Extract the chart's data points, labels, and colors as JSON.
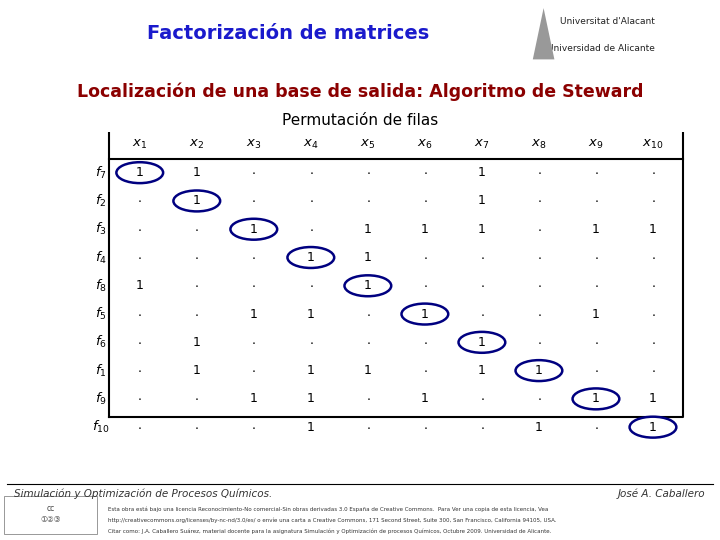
{
  "title": "Factorización de matrices",
  "subtitle": "Localización de una base de salida: Algoritmo de Steward",
  "sub2": "Permutación de filas",
  "row_labels": [
    "$f_7$",
    "$f_2$",
    "$f_3$",
    "$f_4$",
    "$f_8$",
    "$f_5$",
    "$f_6$",
    "$f_1$",
    "$f_9$",
    "$f_{10}$"
  ],
  "col_labels": [
    "$x_1$",
    "$x_2$",
    "$x_3$",
    "$x_4$",
    "$x_5$",
    "$x_6$",
    "$x_7$",
    "$x_8$",
    "$x_9$",
    "$x_{10}$"
  ],
  "matrix": [
    [
      1,
      1,
      0,
      0,
      0,
      0,
      1,
      0,
      0,
      0
    ],
    [
      0,
      1,
      0,
      0,
      0,
      0,
      1,
      0,
      0,
      0
    ],
    [
      0,
      0,
      1,
      0,
      1,
      1,
      1,
      0,
      1,
      1
    ],
    [
      0,
      0,
      0,
      1,
      1,
      0,
      0,
      0,
      0,
      0
    ],
    [
      1,
      0,
      0,
      0,
      1,
      0,
      0,
      0,
      0,
      0
    ],
    [
      0,
      0,
      1,
      1,
      0,
      1,
      0,
      0,
      1,
      0
    ],
    [
      0,
      1,
      0,
      0,
      0,
      0,
      1,
      0,
      0,
      0
    ],
    [
      0,
      1,
      0,
      1,
      1,
      0,
      1,
      1,
      0,
      0
    ],
    [
      0,
      0,
      1,
      1,
      0,
      1,
      0,
      0,
      1,
      1
    ],
    [
      0,
      0,
      0,
      1,
      0,
      0,
      0,
      1,
      0,
      1
    ]
  ],
  "circled": [
    [
      0,
      0
    ],
    [
      1,
      1
    ],
    [
      2,
      2
    ],
    [
      3,
      3
    ],
    [
      4,
      4
    ],
    [
      5,
      5
    ],
    [
      6,
      6
    ],
    [
      7,
      7
    ],
    [
      8,
      8
    ],
    [
      9,
      9
    ]
  ],
  "title_color": "#1a1acc",
  "subtitle_color": "#8b0000",
  "circle_color": "#000080",
  "header_bg": "#cccccc",
  "blue_bar": "#00008b",
  "footer_left": "Simulación y Optimización de Procesos Químicos.",
  "footer_right": "José A. Caballero",
  "footer_line1": "Esta obra está bajo una licencia Reconocimiento-No comercial-Sin obras derivadas 3.0 España de Creative Commons.  Para Ver una copia de esta licencia, Vea",
  "footer_line2": "http://creativecommons.org/licenses/by-nc-nd/3.0/es/ o envíe una carta a Creative Commons, 171 Second Street, Suite 300, San Francisco, California 94105, USA.",
  "footer_line3": "Citar como: J.A. Caballero Suárez, material docente para la asignatura Simulación y Optimización de procesos Químicos, Octubre 2009. Universidad de Alicante."
}
